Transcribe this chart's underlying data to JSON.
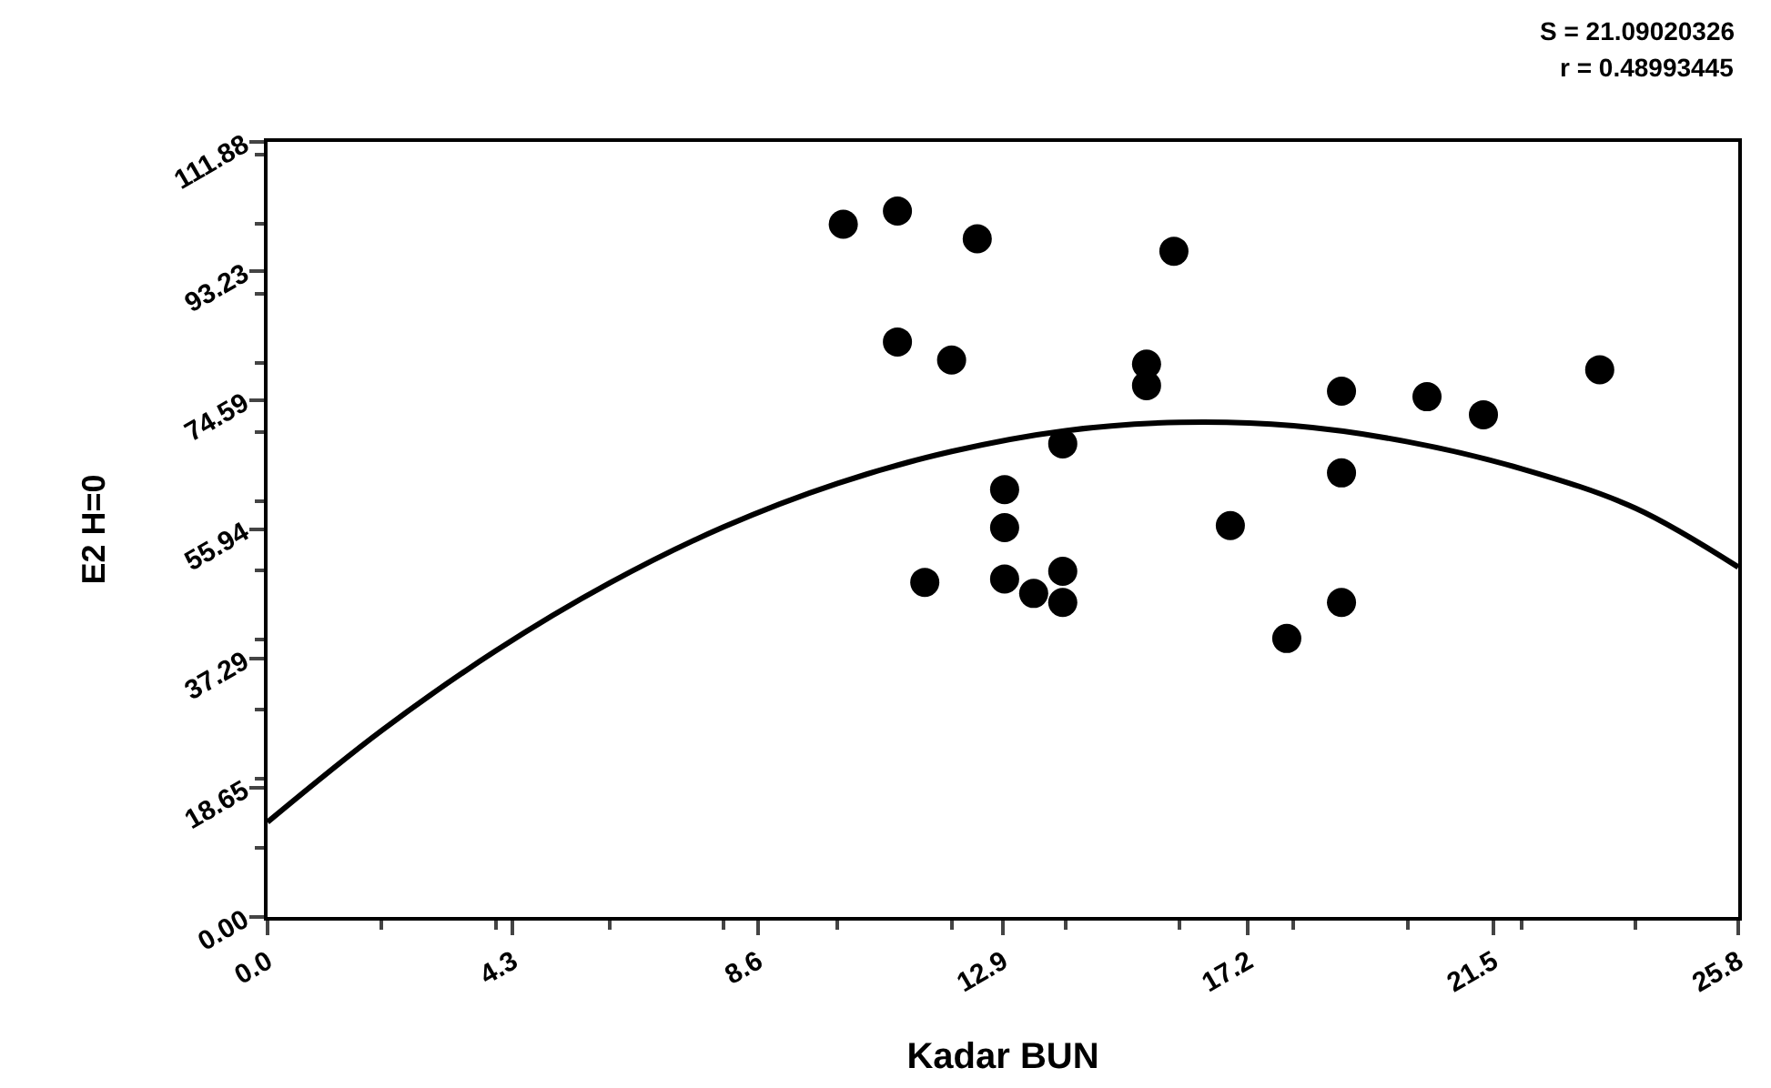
{
  "chart_data": {
    "type": "scatter",
    "xlabel": "Kadar BUN",
    "ylabel": "E2 H=0",
    "annotations": [
      "S = 21.09020326",
      "r = 0.48993445"
    ],
    "xlim": [
      0,
      25.8
    ],
    "ylim": [
      0,
      111.88
    ],
    "xticks": [
      {
        "value": 0,
        "label": "0.0"
      },
      4.3,
      8.6,
      12.9,
      17.2,
      21.5,
      25.8
    ],
    "yticks": [
      {
        "value": 0,
        "label": "0.00"
      },
      18.65,
      37.29,
      55.94,
      74.59,
      93.23,
      111.88
    ],
    "grid": false,
    "marker": "circle",
    "series": [
      {
        "color": "#000000",
        "x": [
          10.1,
          11.05,
          12.45,
          15.9,
          11.05,
          12.0,
          15.42,
          15.42,
          18.84,
          20.34,
          21.33,
          23.37,
          13.95,
          12.93,
          12.93,
          18.84,
          16.89,
          11.53,
          12.93,
          13.44,
          13.95,
          13.95,
          18.84,
          17.88
        ],
        "values": [
          100.0,
          101.9,
          97.9,
          96.1,
          83.0,
          80.4,
          79.8,
          76.7,
          75.9,
          75.1,
          72.5,
          79.0,
          68.3,
          61.7,
          56.2,
          64.1,
          56.5,
          48.3,
          48.8,
          46.7,
          49.9,
          45.4,
          45.4,
          40.2
        ]
      },
      {
        "type": "line",
        "color": "#000000",
        "line_style": "solid",
        "marker": "none",
        "x": [
          0,
          2,
          4,
          6,
          8,
          10,
          12,
          14,
          16,
          18,
          20,
          22,
          24,
          25.8
        ],
        "values": [
          13.7,
          26.9,
          38.4,
          48.2,
          56.3,
          62.6,
          67.2,
          70.2,
          71.4,
          70.9,
          68.6,
          64.7,
          59.0,
          50.5
        ]
      }
    ]
  }
}
